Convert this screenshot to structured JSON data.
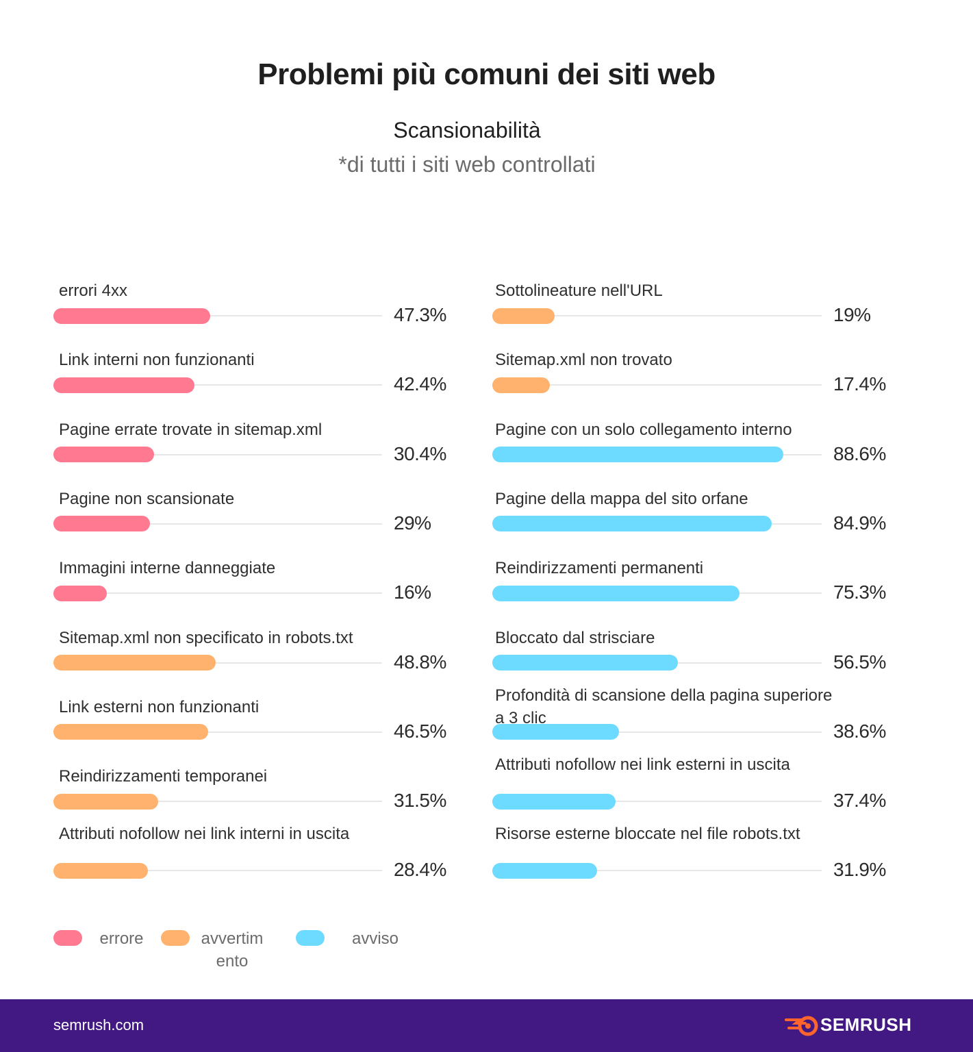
{
  "title": "Problemi più comuni dei siti web",
  "subtitle": "Scansionabilità",
  "note": "*di tutti i siti web controllati",
  "colors": {
    "errore": "#ff7a90",
    "avvertimento": "#ffb26e",
    "avviso": "#6ddaff",
    "footer": "#421983"
  },
  "chart_data": {
    "type": "bar",
    "orientation": "horizontal",
    "xlim": [
      0,
      100
    ],
    "grid": false,
    "legend_position": "bottom-left",
    "legend": [
      {
        "category": "errore",
        "label": "errore"
      },
      {
        "category": "avvertimento",
        "label": "avvertim\nento"
      },
      {
        "category": "avviso",
        "label": "avviso"
      }
    ],
    "series": [
      {
        "column": "left",
        "label": "errori 4xx",
        "value": 47.3,
        "display": "47.3%",
        "category": "errore"
      },
      {
        "column": "left",
        "label": "Link interni non funzionanti",
        "value": 42.4,
        "display": "42.4%",
        "category": "errore"
      },
      {
        "column": "left",
        "label": "Pagine errate trovate in sitemap.xml",
        "value": 30.4,
        "display": "30.4%",
        "category": "errore"
      },
      {
        "column": "left",
        "label": "Pagine non scansionate",
        "value": 29,
        "display": "29%",
        "category": "errore"
      },
      {
        "column": "left",
        "label": "Immagini interne danneggiate",
        "value": 16,
        "display": "16%",
        "category": "errore"
      },
      {
        "column": "left",
        "label": "Sitemap.xml non specificato in robots.txt",
        "value": 48.8,
        "display": "48.8%",
        "category": "avvertimento"
      },
      {
        "column": "left",
        "label": "Link esterni non funzionanti",
        "value": 46.5,
        "display": "46.5%",
        "category": "avvertimento"
      },
      {
        "column": "left",
        "label": "Reindirizzamenti temporanei",
        "value": 31.5,
        "display": "31.5%",
        "category": "avvertimento"
      },
      {
        "column": "left",
        "label": "Attributi nofollow nei link interni in uscita",
        "value": 28.4,
        "display": "28.4%",
        "category": "avvertimento"
      },
      {
        "column": "right",
        "label": "Sottolineature nell'URL",
        "value": 19,
        "display": "19%",
        "category": "avvertimento"
      },
      {
        "column": "right",
        "label": "Sitemap.xml non trovato",
        "value": 17.4,
        "display": "17.4%",
        "category": "avvertimento"
      },
      {
        "column": "right",
        "label": "Pagine con un solo collegamento interno",
        "value": 88.6,
        "display": "88.6%",
        "category": "avviso"
      },
      {
        "column": "right",
        "label": "Pagine della mappa del sito orfane",
        "value": 84.9,
        "display": "84.9%",
        "category": "avviso"
      },
      {
        "column": "right",
        "label": "Reindirizzamenti permanenti",
        "value": 75.3,
        "display": "75.3%",
        "category": "avviso"
      },
      {
        "column": "right",
        "label": "Bloccato dal strisciare",
        "value": 56.5,
        "display": "56.5%",
        "category": "avviso"
      },
      {
        "column": "right",
        "label": "Profondità di scansione della pagina superiore a 3 clic",
        "value": 38.6,
        "display": "38.6%",
        "category": "avviso"
      },
      {
        "column": "right",
        "label": "Attributi nofollow nei link esterni in uscita",
        "value": 37.4,
        "display": "37.4%",
        "category": "avviso"
      },
      {
        "column": "right",
        "label": "Risorse esterne bloccate nel file robots.txt",
        "value": 31.9,
        "display": "31.9%",
        "category": "avviso"
      }
    ]
  },
  "footer": {
    "domain": "semrush.com",
    "logo_text": "SEMRUSH"
  }
}
